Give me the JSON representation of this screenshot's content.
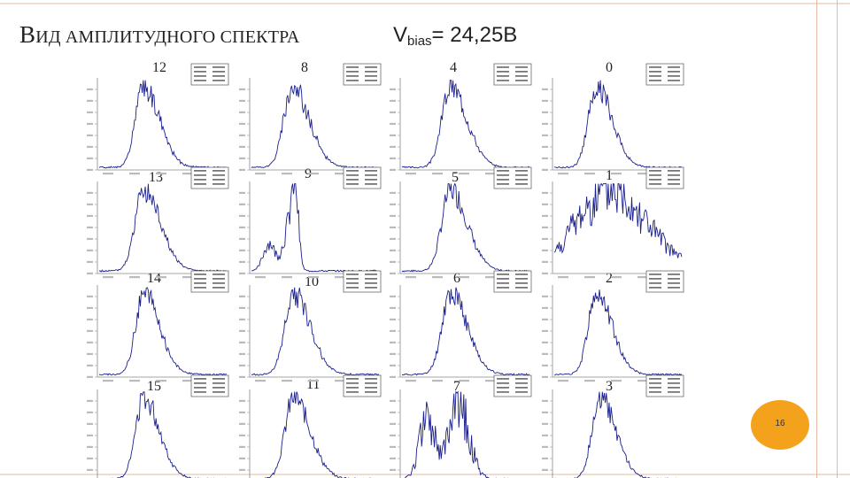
{
  "slide": {
    "title_first": "В",
    "title_rest": "ИД АМПЛИТУДНОГО СПЕКТРА",
    "vbias_prefix": "V",
    "vbias_sub": "bias",
    "vbias_value": "= 24,25В",
    "page_number": "16"
  },
  "colors": {
    "curve": "#1a1f8c",
    "frame": "#e6b9a2",
    "badge": "#f4a11c"
  },
  "chart_data": [
    {
      "type": "line",
      "label": "12",
      "shape": "peak",
      "peak_x": 0.35,
      "width": 0.085,
      "noise": 0.16
    },
    {
      "type": "line",
      "label": "8",
      "shape": "peak",
      "peak_x": 0.32,
      "width": 0.09,
      "noise": 0.16
    },
    {
      "type": "line",
      "label": "4",
      "shape": "peak",
      "peak_x": 0.38,
      "width": 0.09,
      "noise": 0.16
    },
    {
      "type": "line",
      "label": "0",
      "shape": "peak",
      "peak_x": 0.33,
      "width": 0.085,
      "noise": 0.16
    },
    {
      "type": "line",
      "label": "13",
      "shape": "peak",
      "peak_x": 0.35,
      "width": 0.09,
      "noise": 0.16
    },
    {
      "type": "line",
      "label": "9",
      "shape": "bimodal",
      "peak_x": 0.33,
      "width": 0.12,
      "noise": 0.3
    },
    {
      "type": "line",
      "label": "5",
      "shape": "peak",
      "peak_x": 0.38,
      "width": 0.09,
      "noise": 0.16
    },
    {
      "type": "line",
      "label": "1",
      "shape": "broad",
      "peak_x": 0.45,
      "width": 0.27,
      "noise": 0.35
    },
    {
      "type": "line",
      "label": "14",
      "shape": "peak",
      "peak_x": 0.35,
      "width": 0.085,
      "noise": 0.16
    },
    {
      "type": "line",
      "label": "10",
      "shape": "peak",
      "peak_x": 0.33,
      "width": 0.09,
      "noise": 0.16
    },
    {
      "type": "line",
      "label": "6",
      "shape": "peak",
      "peak_x": 0.38,
      "width": 0.09,
      "noise": 0.16
    },
    {
      "type": "line",
      "label": "2",
      "shape": "peak",
      "peak_x": 0.33,
      "width": 0.085,
      "noise": 0.16
    },
    {
      "type": "line",
      "label": "15",
      "shape": "peak",
      "peak_x": 0.35,
      "width": 0.085,
      "noise": 0.16
    },
    {
      "type": "line",
      "label": "11",
      "shape": "peak",
      "peak_x": 0.33,
      "width": 0.09,
      "noise": 0.16
    },
    {
      "type": "line",
      "label": "7",
      "shape": "broad2",
      "peak_x": 0.45,
      "width": 0.2,
      "noise": 0.45
    },
    {
      "type": "line",
      "label": "3",
      "shape": "peak",
      "peak_x": 0.36,
      "width": 0.085,
      "noise": 0.16
    }
  ]
}
